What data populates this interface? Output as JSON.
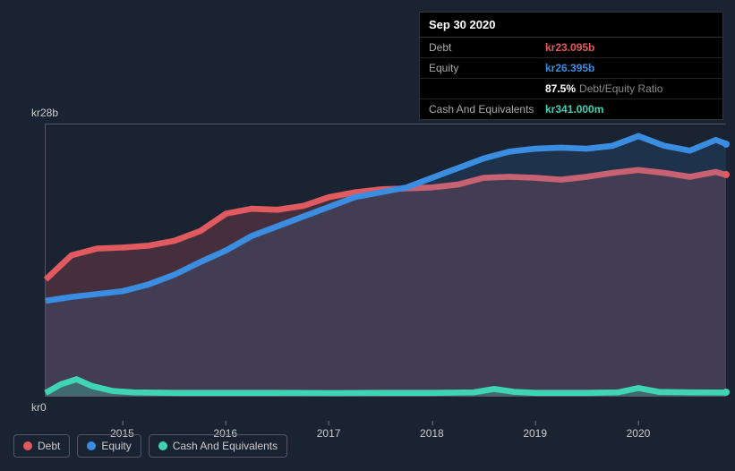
{
  "background_color": "#1a2332",
  "tooltip": {
    "date": "Sep 30 2020",
    "rows": [
      {
        "label": "Debt",
        "value": "kr23.095b",
        "color": "#e15a5f"
      },
      {
        "label": "Equity",
        "value": "kr26.395b",
        "color": "#3a8de0"
      },
      {
        "label": "",
        "ratio_value": "87.5%",
        "ratio_label": "Debt/Equity Ratio"
      },
      {
        "label": "Cash And Equivalents",
        "value": "kr341.000m",
        "color": "#3fd4b4"
      }
    ]
  },
  "yaxis": {
    "top_label": "kr28b",
    "bottom_label": "kr0",
    "min": 0,
    "max": 28
  },
  "xaxis": {
    "min": 2014.25,
    "max": 2020.85,
    "ticks": [
      2015,
      2016,
      2017,
      2018,
      2019,
      2020
    ]
  },
  "series": {
    "debt": {
      "label": "Debt",
      "color": "#e15a5f",
      "fill_opacity": 0.22,
      "line_width": 2,
      "points": [
        [
          2014.25,
          12.0
        ],
        [
          2014.5,
          14.5
        ],
        [
          2014.75,
          15.2
        ],
        [
          2015.0,
          15.3
        ],
        [
          2015.25,
          15.5
        ],
        [
          2015.5,
          16.0
        ],
        [
          2015.75,
          17.0
        ],
        [
          2016.0,
          18.8
        ],
        [
          2016.25,
          19.3
        ],
        [
          2016.5,
          19.2
        ],
        [
          2016.75,
          19.6
        ],
        [
          2017.0,
          20.5
        ],
        [
          2017.25,
          21.0
        ],
        [
          2017.5,
          21.3
        ],
        [
          2017.75,
          21.4
        ],
        [
          2018.0,
          21.5
        ],
        [
          2018.25,
          21.8
        ],
        [
          2018.5,
          22.5
        ],
        [
          2018.75,
          22.6
        ],
        [
          2019.0,
          22.5
        ],
        [
          2019.25,
          22.3
        ],
        [
          2019.5,
          22.6
        ],
        [
          2019.75,
          23.0
        ],
        [
          2020.0,
          23.3
        ],
        [
          2020.25,
          23.0
        ],
        [
          2020.5,
          22.6
        ],
        [
          2020.75,
          23.1
        ],
        [
          2020.85,
          22.8
        ]
      ]
    },
    "equity": {
      "label": "Equity",
      "color": "#3a8de0",
      "fill_opacity": 0.15,
      "line_width": 2,
      "points": [
        [
          2014.25,
          9.8
        ],
        [
          2014.5,
          10.2
        ],
        [
          2014.75,
          10.5
        ],
        [
          2015.0,
          10.8
        ],
        [
          2015.25,
          11.5
        ],
        [
          2015.5,
          12.5
        ],
        [
          2015.75,
          13.8
        ],
        [
          2016.0,
          15.0
        ],
        [
          2016.25,
          16.5
        ],
        [
          2016.5,
          17.5
        ],
        [
          2016.75,
          18.5
        ],
        [
          2017.0,
          19.5
        ],
        [
          2017.25,
          20.5
        ],
        [
          2017.5,
          21.0
        ],
        [
          2017.75,
          21.5
        ],
        [
          2018.0,
          22.5
        ],
        [
          2018.25,
          23.5
        ],
        [
          2018.5,
          24.5
        ],
        [
          2018.75,
          25.2
        ],
        [
          2019.0,
          25.5
        ],
        [
          2019.25,
          25.6
        ],
        [
          2019.5,
          25.5
        ],
        [
          2019.75,
          25.8
        ],
        [
          2020.0,
          26.8
        ],
        [
          2020.25,
          25.8
        ],
        [
          2020.5,
          25.3
        ],
        [
          2020.75,
          26.4
        ],
        [
          2020.85,
          26.0
        ]
      ]
    },
    "cash": {
      "label": "Cash And Equivalents",
      "color": "#3fd4b4",
      "fill_opacity": 0.3,
      "line_width": 2,
      "points": [
        [
          2014.25,
          0.3
        ],
        [
          2014.4,
          1.2
        ],
        [
          2014.55,
          1.7
        ],
        [
          2014.7,
          1.0
        ],
        [
          2014.9,
          0.5
        ],
        [
          2015.1,
          0.35
        ],
        [
          2015.5,
          0.3
        ],
        [
          2016.0,
          0.3
        ],
        [
          2016.5,
          0.3
        ],
        [
          2017.0,
          0.28
        ],
        [
          2017.5,
          0.3
        ],
        [
          2018.0,
          0.3
        ],
        [
          2018.4,
          0.35
        ],
        [
          2018.6,
          0.7
        ],
        [
          2018.8,
          0.4
        ],
        [
          2019.0,
          0.3
        ],
        [
          2019.5,
          0.3
        ],
        [
          2019.8,
          0.35
        ],
        [
          2020.0,
          0.8
        ],
        [
          2020.2,
          0.4
        ],
        [
          2020.5,
          0.35
        ],
        [
          2020.75,
          0.34
        ],
        [
          2020.85,
          0.34
        ]
      ]
    }
  },
  "legend": [
    {
      "key": "debt",
      "label": "Debt",
      "color": "#e15a5f"
    },
    {
      "key": "equity",
      "label": "Equity",
      "color": "#3a8de0"
    },
    {
      "key": "cash",
      "label": "Cash And Equivalents",
      "color": "#3fd4b4"
    }
  ]
}
